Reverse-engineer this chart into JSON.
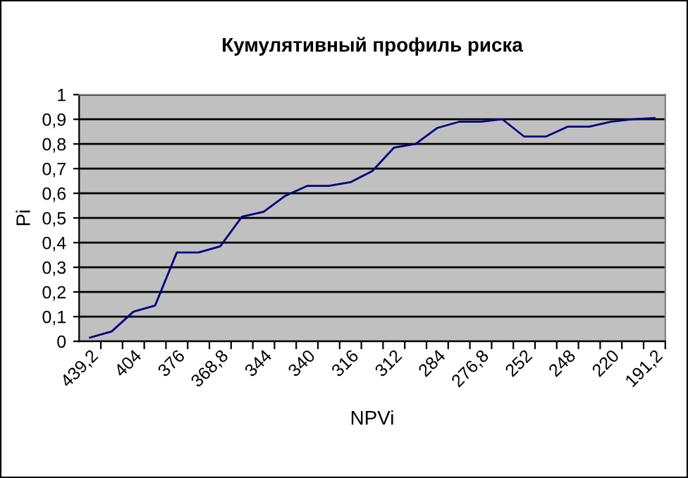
{
  "chart_data": {
    "type": "line",
    "title": "Кумулятивный профиль риска",
    "xlabel": "NPVi",
    "ylabel": "Pi",
    "categories": [
      "439,2",
      null,
      "404",
      null,
      "376",
      null,
      "368,8",
      null,
      "344",
      null,
      "340",
      null,
      "316",
      null,
      "312",
      null,
      "284",
      null,
      "276,8",
      null,
      "252",
      null,
      "248",
      null,
      "220",
      null,
      "191,2"
    ],
    "series": [
      {
        "color": "#000080",
        "values": [
          0.015,
          0.04,
          0.12,
          0.145,
          0.36,
          0.36,
          0.385,
          0.505,
          0.525,
          0.59,
          0.63,
          0.63,
          0.645,
          0.69,
          0.785,
          0.8,
          0.865,
          0.89,
          0.89,
          0.9,
          0.83,
          0.83,
          0.87,
          0.87,
          0.89,
          0.9,
          0.905
        ]
      }
    ],
    "ylim": [
      0,
      1
    ],
    "yticks": [
      0,
      {
        "value": 0.1,
        "label": "0,1"
      },
      {
        "value": 0.2,
        "label": "0,2"
      },
      {
        "value": 0.3,
        "label": "0,3"
      },
      {
        "value": 0.4,
        "label": "0,4"
      },
      {
        "value": 0.5,
        "label": "0,5"
      },
      {
        "value": 0.6,
        "label": "0,6"
      },
      {
        "value": 0.7,
        "label": "0,7"
      },
      {
        "value": 0.8,
        "label": "0,8"
      },
      {
        "value": 0.9,
        "label": "0,9"
      },
      1
    ],
    "grid": "y",
    "marker": "none",
    "line_style": "solid",
    "legend": false
  }
}
